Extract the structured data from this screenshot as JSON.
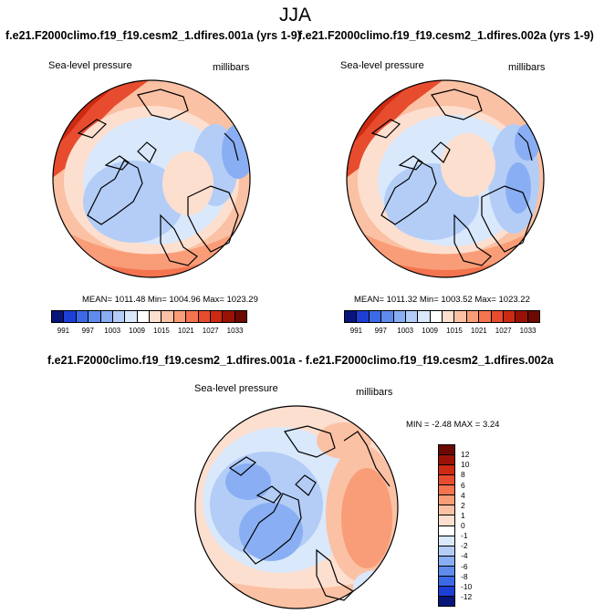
{
  "title": "JJA",
  "panel1": {
    "header": "f.e21.F2000climo.f19_f19.cesm2_1.dfires.001a (yrs 1-9)",
    "left_label": "Sea-level pressure",
    "right_label": "millibars",
    "stats": "MEAN= 1011.48  Min= 1004.96  Max= 1023.29"
  },
  "panel2": {
    "header": "f.e21.F2000climo.f19_f19.cesm2_1.dfires.002a (yrs 1-9)",
    "left_label": "Sea-level pressure",
    "right_label": "millibars",
    "stats": "MEAN= 1011.32  Min= 1003.52  Max= 1023.22"
  },
  "diff": {
    "header": "f.e21.F2000climo.f19_f19.cesm2_1.dfires.001a - f.e21.F2000climo.f19_f19.cesm2_1.dfires.002a",
    "left_label": "Sea-level pressure",
    "right_label": "millibars",
    "stats": "MIN =  -2.48 MAX =   3.24"
  },
  "colorbar_abs": {
    "ticks": [
      "991",
      "997",
      "1003",
      "1009",
      "1015",
      "1021",
      "1027",
      "1033"
    ],
    "colors": [
      "#08157a",
      "#1e3fd6",
      "#3c6ae6",
      "#5f8cec",
      "#89aef3",
      "#b3cdf7",
      "#d9e8fb",
      "#ffffff",
      "#fddfcf",
      "#fbc1a4",
      "#f99d78",
      "#f47450",
      "#e84c2e",
      "#cc2a12",
      "#9a1205",
      "#6b0a02"
    ]
  },
  "colorbar_diff": {
    "ticks": [
      "12",
      "10",
      "8",
      "6",
      "4",
      "2",
      "1",
      "0",
      "-1",
      "-2",
      "-4",
      "-6",
      "-8",
      "-10",
      "-12"
    ],
    "colors": [
      "#6b0a02",
      "#9a1205",
      "#cc2a12",
      "#e84c2e",
      "#f47450",
      "#f99d78",
      "#fbc1a4",
      "#fddfcf",
      "#ffffff",
      "#d9e8fb",
      "#b3cdf7",
      "#89aef3",
      "#5f8cec",
      "#3c6ae6",
      "#1e3fd6",
      "#08157a"
    ]
  }
}
